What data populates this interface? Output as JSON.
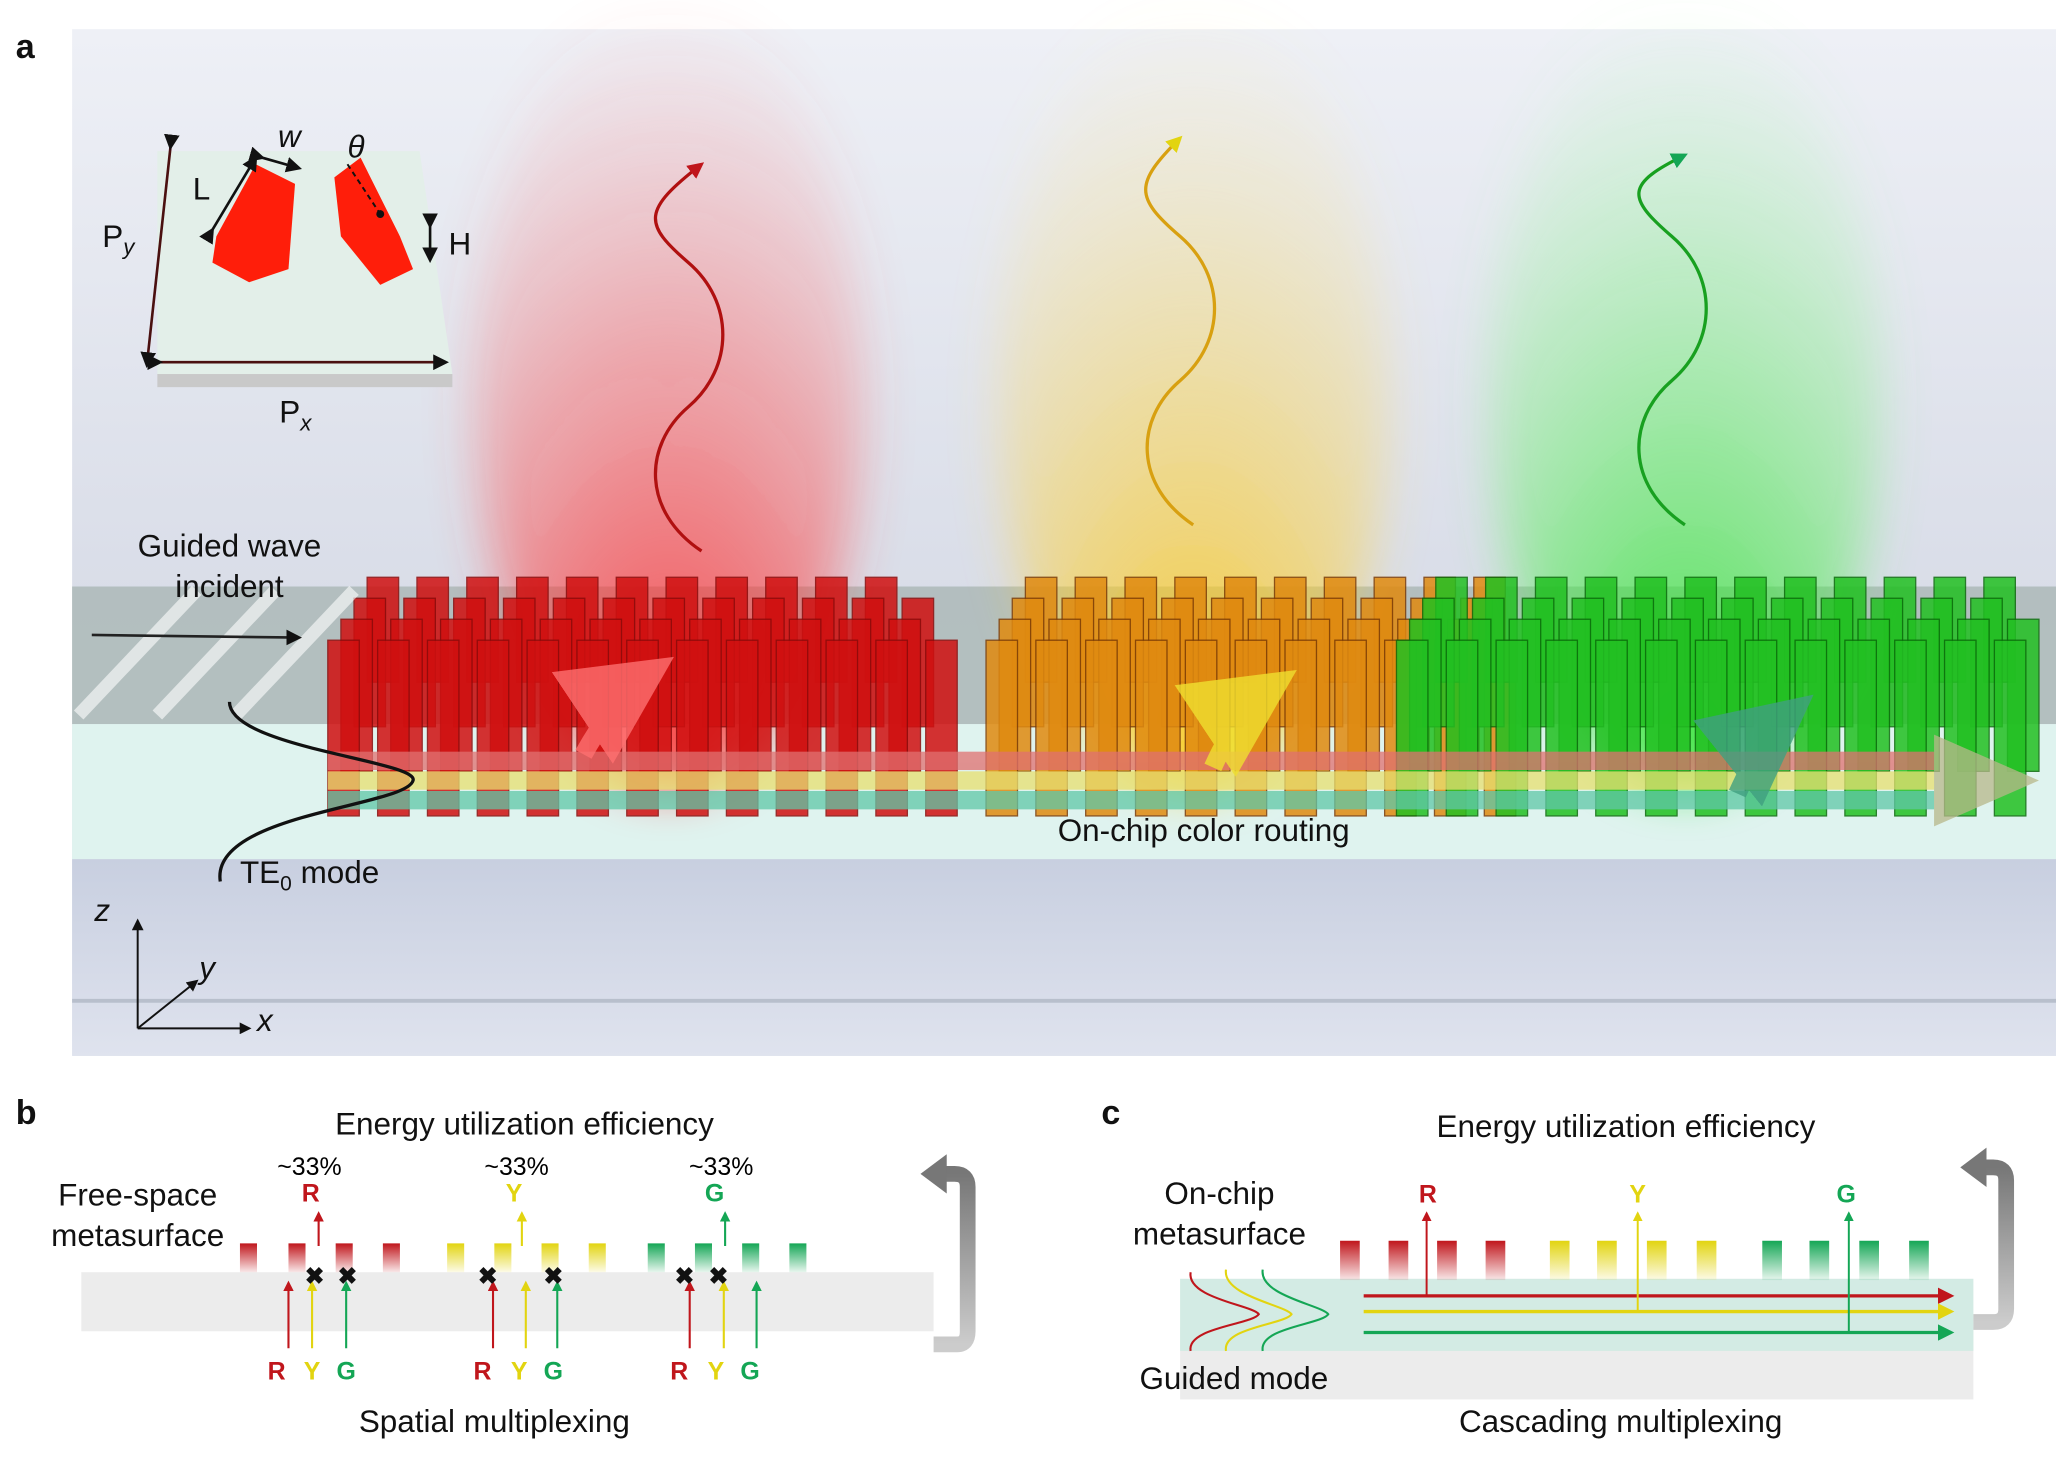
{
  "colors": {
    "red": "#c0161c",
    "yellow": "#e2d410",
    "green": "#14a655",
    "gray": "#888888"
  },
  "panel_a": {
    "label": "a",
    "inset": {
      "w": "w",
      "L": "L",
      "theta": "θ",
      "H": "H",
      "Py_main": "P",
      "Py_sub": "y",
      "Px_main": "P",
      "Px_sub": "x"
    },
    "guided_wave_line1": "Guided wave",
    "guided_wave_line2": "incident",
    "routing_label": "On-chip color routing",
    "mode_main": "TE",
    "mode_sub": "0",
    "mode_rest": " mode",
    "axes": {
      "z": "z",
      "y": "y",
      "x": "x"
    }
  },
  "panel_b": {
    "label": "b",
    "title": "Energy utilization efficiency",
    "efficiencies": [
      "~33%",
      "~33%",
      "~33%"
    ],
    "outputs": [
      "R",
      "Y",
      "G"
    ],
    "metasurface_line1": "Free-space",
    "metasurface_line2": "metasurface",
    "inputs": [
      "R",
      "Y",
      "G"
    ],
    "caption": "Spatial multiplexing"
  },
  "panel_c": {
    "label": "c",
    "title": "Energy utilization efficiency",
    "metasurface_line1": "On-chip",
    "metasurface_line2": "metasurface",
    "outputs": [
      "R",
      "Y",
      "G"
    ],
    "mode_label": "Guided mode",
    "caption": "Cascading multiplexing"
  }
}
